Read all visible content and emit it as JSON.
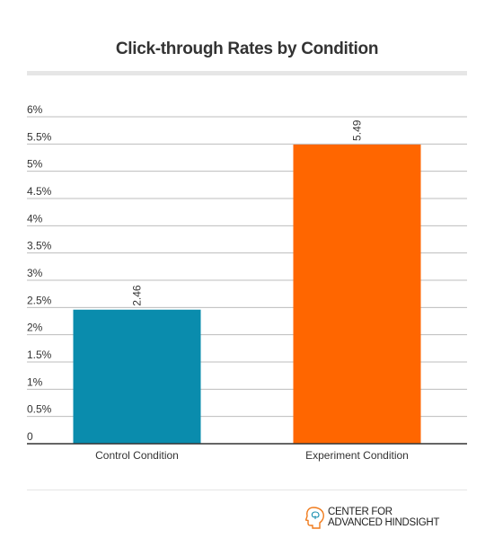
{
  "chart_data": {
    "type": "bar",
    "title": "Click-through Rates by Condition",
    "categories": [
      "Control Condition",
      "Experiment Condition"
    ],
    "values": [
      2.46,
      5.49
    ],
    "value_labels": [
      "2.46",
      "5.49"
    ],
    "colors": [
      "#0a8cad",
      "#ff6600"
    ],
    "ylim": [
      0,
      6
    ],
    "yticks": [
      0,
      0.5,
      1,
      1.5,
      2,
      2.5,
      3,
      3.5,
      4,
      4.5,
      5,
      5.5,
      6
    ],
    "ytick_labels": [
      "0",
      "0.5%",
      "1%",
      "1.5%",
      "2%",
      "2.5%",
      "3%",
      "3.5%",
      "4%",
      "4.5%",
      "5%",
      "5.5%",
      "6%"
    ],
    "grid": true,
    "xlabel": "",
    "ylabel": ""
  },
  "branding": {
    "logo_line1": "CENTER FOR",
    "logo_line2": "ADVANCED HINDSIGHT",
    "logo_icon": "head-silhouette-icon"
  }
}
